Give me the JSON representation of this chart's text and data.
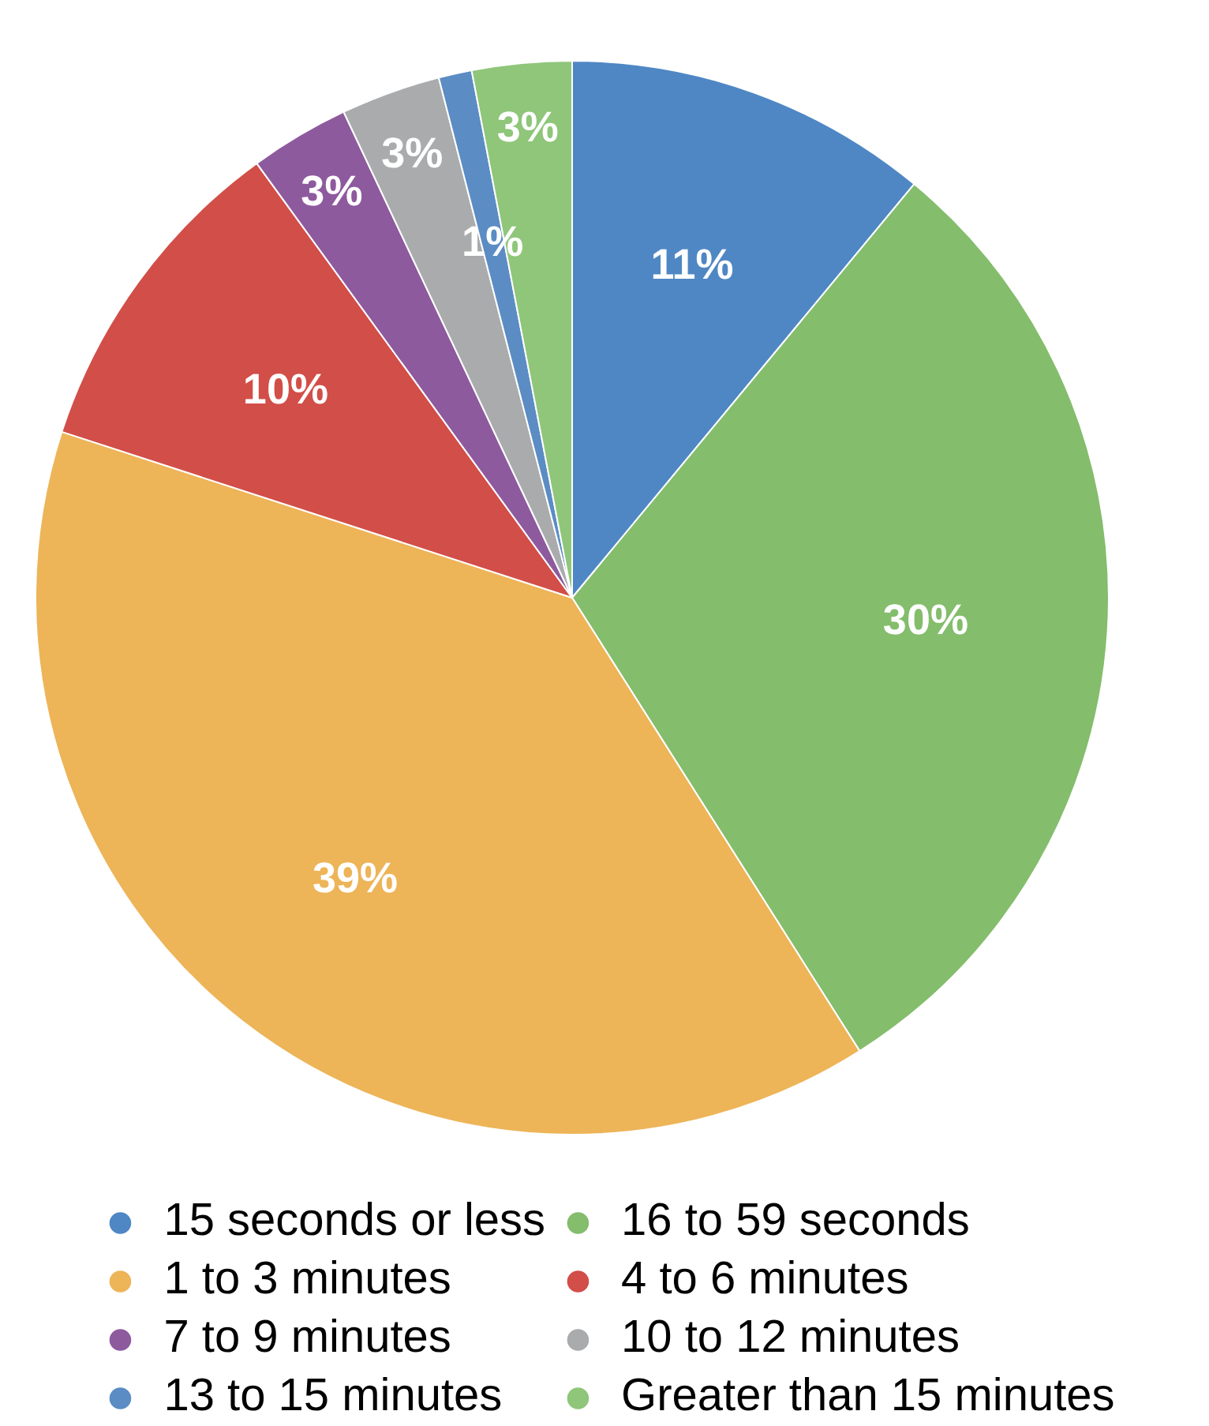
{
  "chart_data": {
    "type": "pie",
    "categories": [
      "15 seconds or less",
      "16 to 59 seconds",
      "1 to 3 minutes",
      "4 to 6 minutes",
      "7 to 9 minutes",
      "10 to 12 minutes",
      "13 to 15 minutes",
      "Greater than 15 minutes"
    ],
    "values": [
      11,
      30,
      39,
      10,
      3,
      3,
      1,
      3
    ],
    "colors": [
      "#4f87c4",
      "#84bd6c",
      "#edb458",
      "#d24e48",
      "#8e5a9e",
      "#a9abad",
      "#5b8cc4",
      "#8fc67a"
    ],
    "value_labels": [
      "11%",
      "30%",
      "39%",
      "10%",
      "3%",
      "3%",
      "1%",
      "3%"
    ],
    "legend": "bottom"
  }
}
